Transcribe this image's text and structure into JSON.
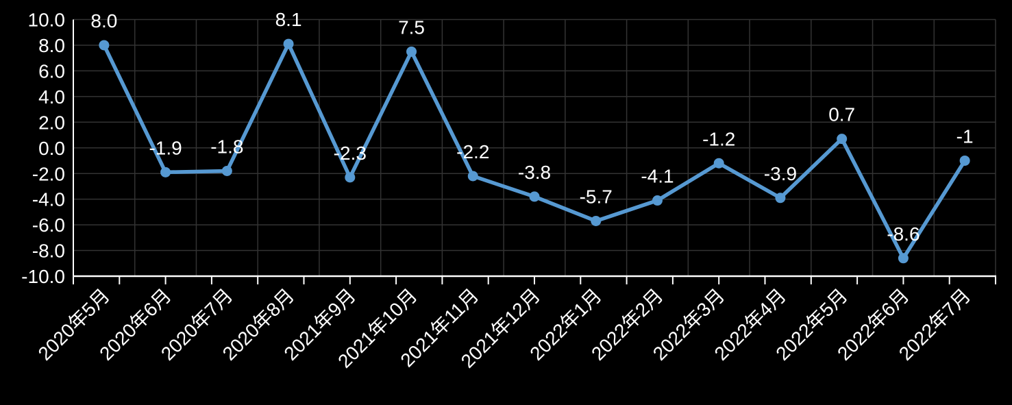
{
  "chart_data": {
    "type": "line",
    "title": "",
    "xlabel": "",
    "ylabel": "",
    "categories": [
      "2020年5月",
      "2020年6月",
      "2020年7月",
      "2020年8月",
      "2021年9月",
      "2021年10月",
      "2021年11月",
      "2021年12月",
      "2022年1月",
      "2022年2月",
      "2022年3月",
      "2022年4月",
      "2022年5月",
      "2022年6月",
      "2022年7月"
    ],
    "values": [
      8.0,
      -1.9,
      -1.8,
      8.1,
      -2.3,
      7.5,
      -2.2,
      -3.8,
      -5.7,
      -4.1,
      -1.2,
      -3.9,
      0.7,
      -8.6,
      -1
    ],
    "point_labels": [
      "8.0",
      "-1.9",
      "-1.8",
      "8.1",
      "-2.3",
      "7.5",
      "-2.2",
      "-3.8",
      "-5.7",
      "-4.1",
      "-1.2",
      "-3.9",
      "0.7",
      "-8.6",
      "-1"
    ],
    "y_tick_labels": [
      "10.0",
      "8.0",
      "6.0",
      "4.0",
      "2.0",
      "0.0",
      "-2.0",
      "-4.0",
      "-6.0",
      "-8.0",
      "-10.0"
    ],
    "ylim": [
      -10,
      10
    ],
    "y_step": 2,
    "grid": true,
    "legend": false,
    "x_label_rotation_deg": 45,
    "colors": {
      "background": "#000000",
      "line": "#5699D2",
      "marker": "#5699D2",
      "axis": "#FFFFFF",
      "gridline": "#333333",
      "text": "#FFFFFF"
    }
  }
}
